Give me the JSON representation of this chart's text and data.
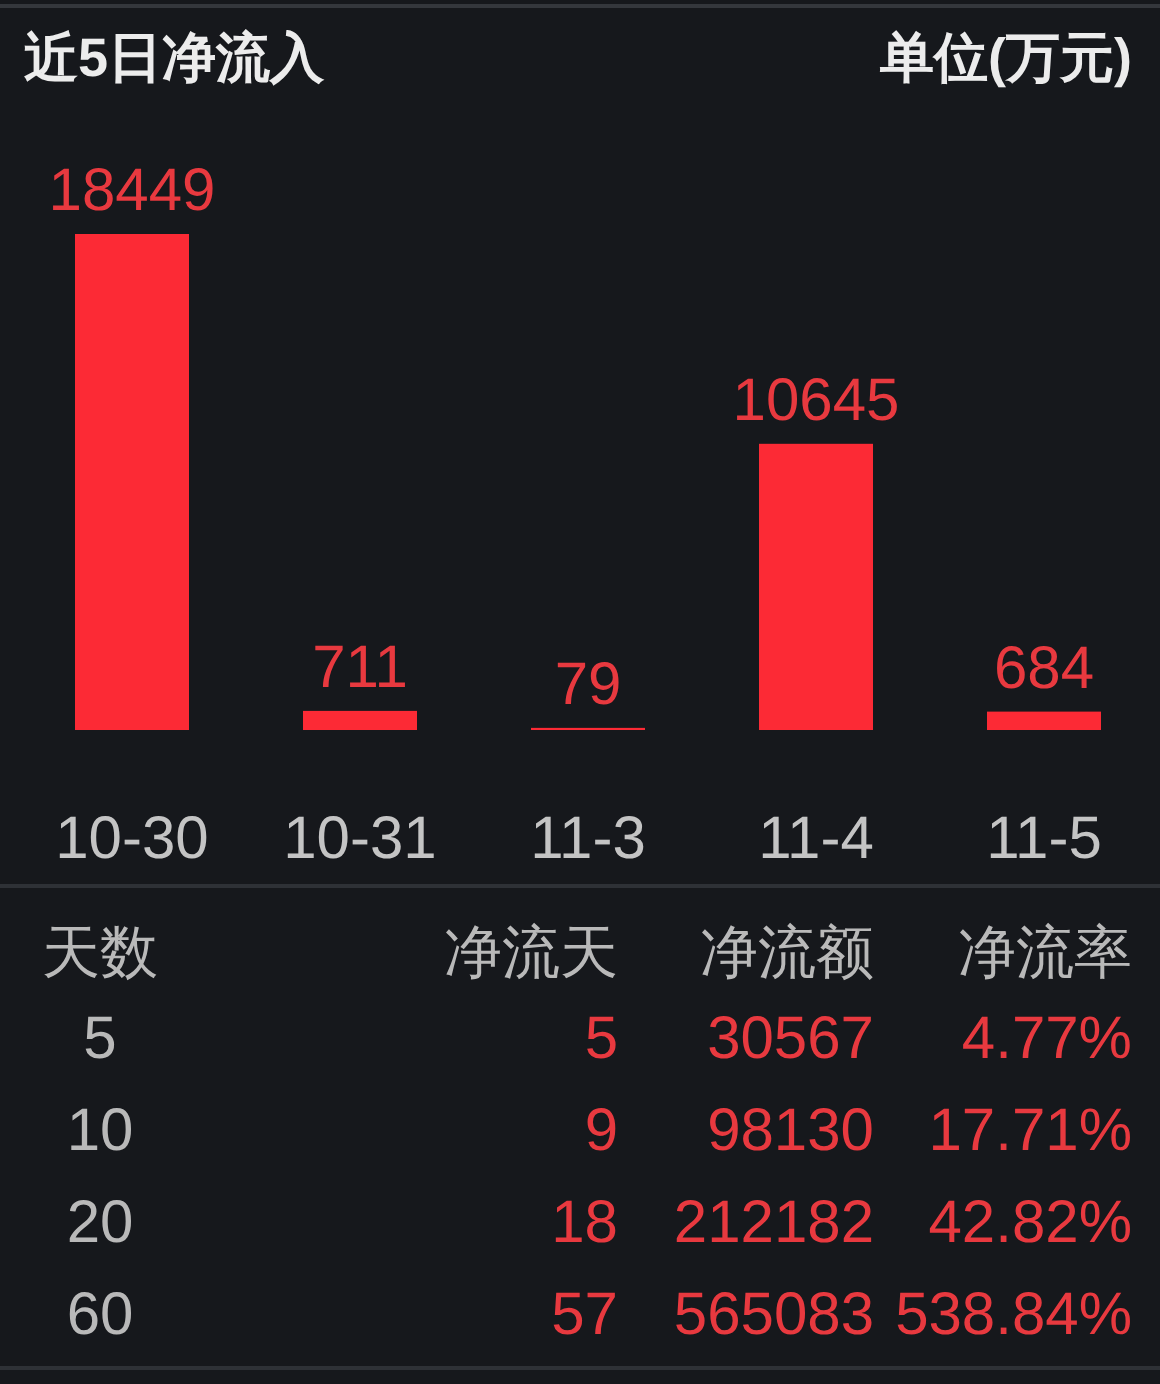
{
  "chart_data": [
    {
      "type": "bar",
      "title": "近5日净流入",
      "subtitle": "单位(万元)",
      "categories": [
        "10-30",
        "10-31",
        "11-3",
        "11-4",
        "11-5"
      ],
      "values": [
        18449,
        711,
        79,
        10645,
        684
      ],
      "color": "#fc2a35",
      "data_labels": true
    },
    {
      "type": "other",
      "annotations": [
        "天数",
        "净流天",
        "净流额",
        "净流率",
        "5",
        "5",
        "30567",
        "4.77%",
        "10",
        "9",
        "98130",
        "17.71%",
        "20",
        "18",
        "212182",
        "42.82%",
        "60",
        "57",
        "565083",
        "538.84%"
      ]
    }
  ]
}
